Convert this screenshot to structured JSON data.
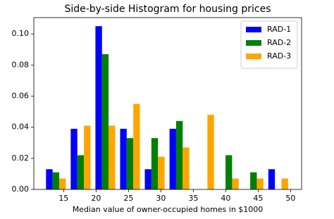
{
  "chart_data": {
    "type": "histogram",
    "title": "Side-by-side Histogram for housing prices",
    "x_label": "Median value of owner-occupied homes in $1000",
    "bins": [
      11.9,
      15.71,
      19.52,
      23.33,
      27.14,
      30.95,
      34.76,
      38.57,
      42.38,
      46.19,
      50.0
    ],
    "series": [
      {
        "name": "RAD-1",
        "color": "#0000ff",
        "values": [
          0.013,
          0.039,
          0.105,
          0.039,
          0.013,
          0.039,
          0,
          0,
          0,
          0.013
        ]
      },
      {
        "name": "RAD-2",
        "color": "#008000",
        "values": [
          0.011,
          0.022,
          0.087,
          0.033,
          0.033,
          0.044,
          0,
          0.022,
          0.011,
          0
        ]
      },
      {
        "name": "RAD-3",
        "color": "#ffa500",
        "values": [
          0.007,
          0.041,
          0.041,
          0.055,
          0.021,
          0.027,
          0.048,
          0.007,
          0.007,
          0.007
        ]
      }
    ],
    "xlim": [
      10.4,
      51.7
    ],
    "ylim": [
      0,
      0.1105
    ],
    "xticks": [
      15,
      20,
      25,
      30,
      35,
      40,
      45,
      50
    ],
    "yticks": [
      {
        "value": 0,
        "label": "0.00"
      },
      {
        "value": 0.02,
        "label": "0.02"
      },
      {
        "value": 0.04,
        "label": "0.04"
      },
      {
        "value": 0.06,
        "label": "0.06"
      },
      {
        "value": 0.08,
        "label": "0.08"
      },
      {
        "value": 0.1,
        "label": "0.10"
      }
    ],
    "legend": "upper right"
  }
}
